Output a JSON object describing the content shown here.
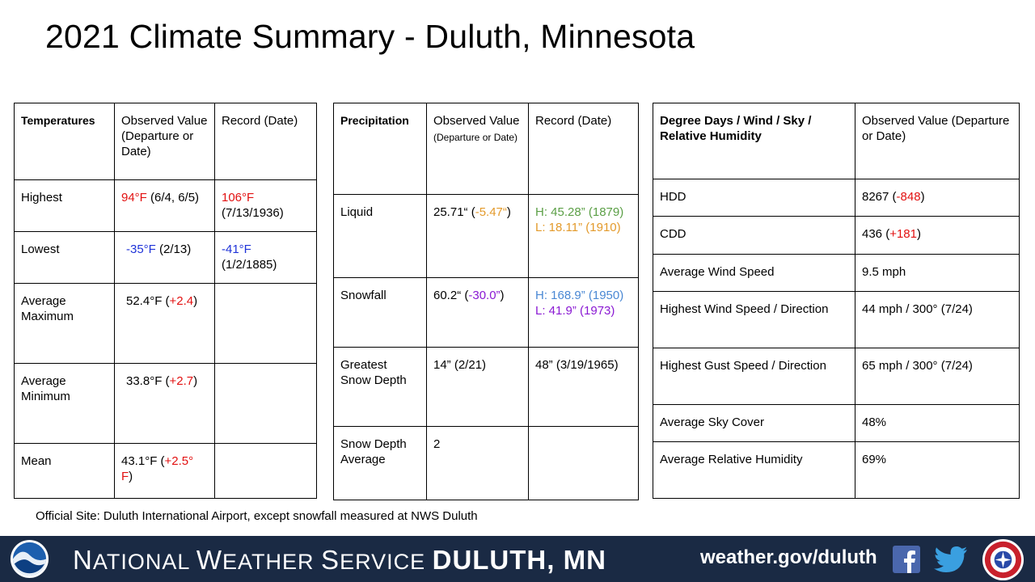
{
  "title": "2021 Climate Summary - Duluth, Minnesota",
  "temperatures": {
    "h1": "Temperatures",
    "h2": "Observed Value (Departure or Date)",
    "h3": "Record (Date)",
    "highest": {
      "label": "Highest",
      "obs": "94°F",
      "obs_date": " (6/4, 6/5)",
      "rec": "106°F",
      "rec_date": " (7/13/1936)"
    },
    "lowest": {
      "label": "Lowest",
      "obs": "-35°F",
      "obs_date": " (2/13)",
      "rec": "-41°F",
      "rec_date": " (1/2/1885)"
    },
    "avg_max": {
      "label": "Average Maximum",
      "obs": "52.4°F (",
      "dep": "+2.4",
      "close": ")"
    },
    "avg_min": {
      "label": "Average Minimum",
      "obs": "33.8°F (",
      "dep": "+2.7",
      "close": ")"
    },
    "mean": {
      "label": "Mean",
      "obs": "43.1°F (",
      "dep": "+2.5° F",
      "close": ")"
    }
  },
  "precipitation": {
    "h1": "Precipitation",
    "h2a": "Observed Value",
    "h2b": " (Departure or Date)",
    "h3": "Record (Date)",
    "liquid": {
      "label": "Liquid",
      "obs": "25.71“ (",
      "dep": "-5.47“",
      "close": ")",
      "rec_high": "H: 45.28” (1879)",
      "rec_low": "L: 18.11” (1910)"
    },
    "snowfall": {
      "label": "Snowfall",
      "obs": "60.2“ (",
      "dep": "-30.0”",
      "close": ")",
      "rec_high": "H: 168.9” (1950)",
      "rec_low": "L: 41.9” (1973)"
    },
    "snow_depth": {
      "label": "Greatest Snow Depth",
      "obs": "14” (2/21)",
      "rec": "48” (3/19/1965)"
    },
    "snow_depth_avg": {
      "label": "Snow Depth Average",
      "obs": "2",
      "rec": ""
    }
  },
  "degree_days": {
    "h1": "Degree Days / Wind / Sky / Relative Humidity",
    "h2": "Observed Value (Departure or Date)",
    "hdd": {
      "label": "HDD",
      "obs": "8267 (",
      "dep": "-848",
      "close": ")"
    },
    "cdd": {
      "label": "CDD",
      "obs": "436 (",
      "dep": "+181",
      "close": ")"
    },
    "avg_wind": {
      "label": "Average Wind Speed",
      "obs": "9.5 mph"
    },
    "high_wind": {
      "label": "Highest Wind Speed / Direction",
      "obs": "44 mph / 300° (7/24)"
    },
    "high_gust": {
      "label": "Highest Gust Speed / Direction",
      "obs": "65 mph / 300° (7/24)"
    },
    "sky_cover": {
      "label": "Average Sky Cover",
      "obs": "48%"
    },
    "rel_humidity": {
      "label": "Average Relative Humidity",
      "obs": "69%"
    }
  },
  "note": "Official Site: Duluth International Airport, except snowfall measured at NWS Duluth",
  "footer": {
    "org_n": "N",
    "org_ational": "ATIONAL ",
    "org_w": "W",
    "org_eather": "EATHER ",
    "org_s": "S",
    "org_ervice": "ERVICE ",
    "org_city": "DULUTH, MN",
    "url": "weather.gov/duluth"
  },
  "colors": {
    "red": "#e21010",
    "blue": "#1f33d8",
    "orange": "#e39a2b",
    "green": "#5b9f46",
    "light_blue": "#4a88d4",
    "purple": "#8a19d3",
    "footer_bg": "#1a2a44"
  }
}
